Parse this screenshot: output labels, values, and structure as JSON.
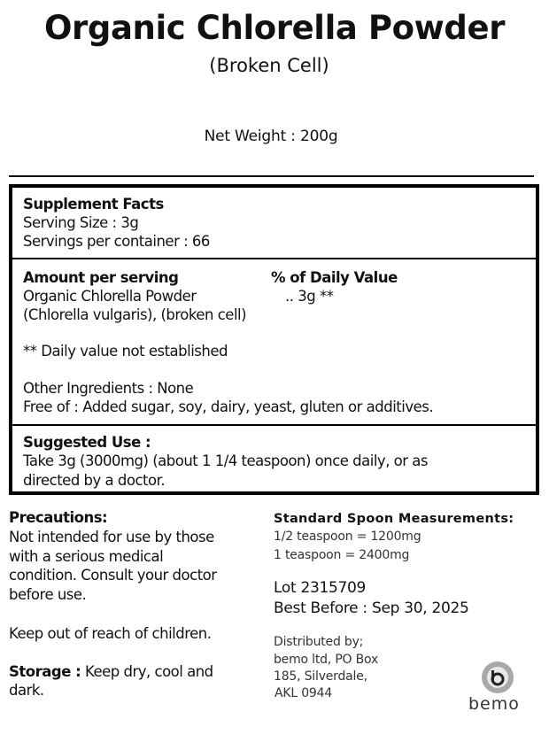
{
  "header": {
    "title": "Organic Chlorella Powder",
    "subtitle": "(Broken Cell)",
    "net_weight": "Net Weight : 200g"
  },
  "facts": {
    "heading": "Supplement Facts",
    "serving_size": "Serving Size : 3g",
    "servings_per_container": "Servings per container : 66",
    "amount_header": "Amount per serving",
    "dv_header": "% of Daily Value",
    "ingredient_name": "Organic Chlorella Powder",
    "ingredient_amount": ".. 3g **",
    "ingredient_detail": "(Chlorella vulgaris), (broken cell)",
    "dv_note": "** Daily value not established",
    "other_ingredients": "Other Ingredients : None",
    "free_of": "Free of : Added sugar, soy, dairy, yeast, gluten or additives.",
    "suggested_heading": "Suggested Use :",
    "suggested_line1": "Take 3g (3000mg) (about 1 1/4 teaspoon) once daily, or as",
    "suggested_line2": "directed by a doctor."
  },
  "precautions": {
    "heading": "Precautions:",
    "lines": [
      "Not intended for use by those",
      "with a serious medical",
      "condition.  Consult your doctor",
      "before use."
    ],
    "keep_out": "Keep out of reach of children.",
    "storage_label": "Storage :",
    "storage_text": " Keep dry, cool and",
    "storage_line2": "dark."
  },
  "spoon": {
    "heading": "Standard Spoon Measurements:",
    "lines": [
      "1/2 teaspoon = 1200mg",
      "1 teaspoon = 2400mg"
    ]
  },
  "lot": "Lot 2315709",
  "best_before": "Best Before : Sep 30, 2025",
  "distributor": {
    "lines": [
      "Distributed by;",
      "bemo ltd, PO Box",
      "185, Silverdale,",
      "AKL 0944"
    ]
  },
  "logo": {
    "text": "bemo",
    "color": "#9a9a9a"
  }
}
